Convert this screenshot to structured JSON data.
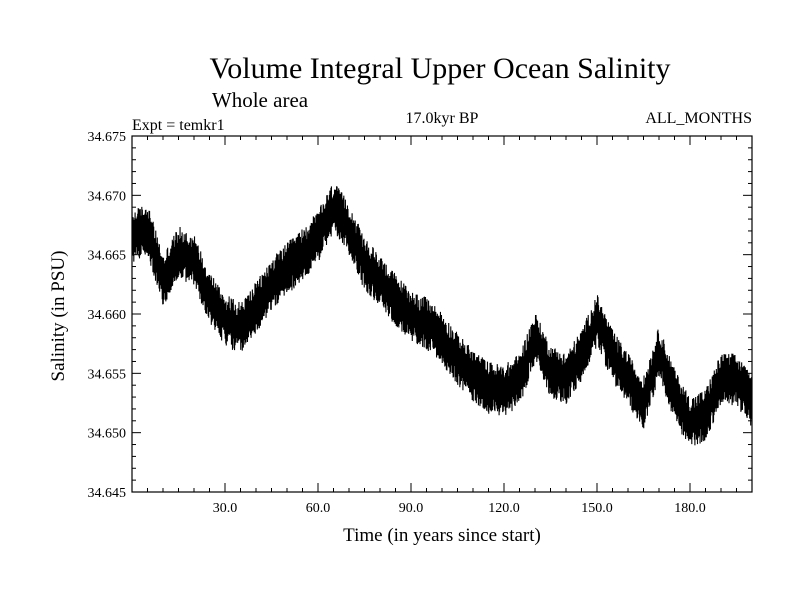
{
  "chart_data": {
    "type": "line",
    "title": "Volume Integral Upper Ocean Salinity",
    "subtitle": "Whole area",
    "experiment": "Expt = temkr1",
    "period": "17.0kyr BP",
    "months": "ALL_MONTHS",
    "xlabel": "Time (in years since start)",
    "ylabel": "Salinity (in PSU)",
    "xlim": [
      0,
      200
    ],
    "ylim": [
      34.645,
      34.675
    ],
    "x_ticks": [
      30,
      60,
      90,
      120,
      150,
      180
    ],
    "x_tick_labels": [
      "30.0",
      "60.0",
      "90.0",
      "120.0",
      "150.0",
      "180.0"
    ],
    "y_ticks": [
      34.645,
      34.65,
      34.655,
      34.66,
      34.665,
      34.67,
      34.675
    ],
    "y_tick_labels": [
      "34.645",
      "34.650",
      "34.655",
      "34.660",
      "34.665",
      "34.670",
      "34.675"
    ],
    "series": [
      {
        "name": "salinity",
        "color": "#000000",
        "x": [
          0,
          5,
          10,
          15,
          20,
          25,
          30,
          35,
          40,
          45,
          50,
          55,
          60,
          65,
          70,
          75,
          80,
          85,
          90,
          95,
          100,
          105,
          110,
          115,
          120,
          125,
          130,
          135,
          140,
          145,
          150,
          155,
          160,
          165,
          170,
          175,
          180,
          185,
          190,
          195,
          200
        ],
        "y": [
          34.6665,
          34.6672,
          34.6628,
          34.6652,
          34.6645,
          34.6615,
          34.6595,
          34.6588,
          34.6605,
          34.6625,
          34.6638,
          34.665,
          34.6665,
          34.669,
          34.6672,
          34.6642,
          34.6628,
          34.6612,
          34.6598,
          34.6592,
          34.658,
          34.6562,
          34.6548,
          34.6538,
          34.6535,
          34.6545,
          34.658,
          34.6552,
          34.6545,
          34.6565,
          34.6595,
          34.6565,
          34.6545,
          34.6525,
          34.6568,
          34.6532,
          34.6508,
          34.6515,
          34.6545,
          34.6545,
          34.6525
        ],
        "amplitude_psu": 0.0022
      }
    ]
  }
}
